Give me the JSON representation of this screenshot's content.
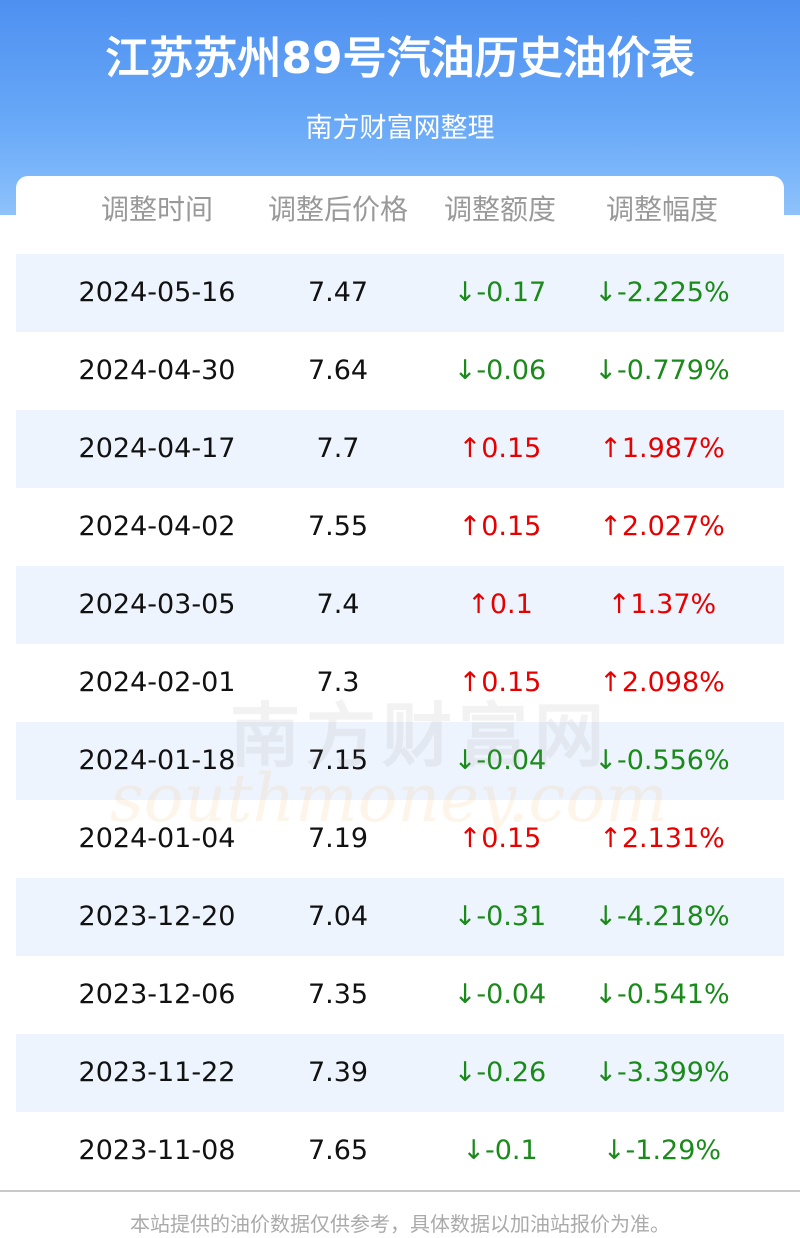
{
  "header": {
    "title": "江苏苏州89号汽油历史油价表",
    "subtitle": "南方财富网整理"
  },
  "table": {
    "columns": [
      "调整时间",
      "调整后价格",
      "调整额度",
      "调整幅度"
    ],
    "rows": [
      {
        "cells": [
          "2024-05-16",
          "7.47",
          "↓-0.17",
          "↓-2.225%"
        ],
        "color": "#1a8a1a"
      },
      {
        "cells": [
          "2024-04-30",
          "7.64",
          "↓-0.06",
          "↓-0.779%"
        ],
        "color": "#1a8a1a"
      },
      {
        "cells": [
          "2024-04-17",
          "7.7",
          "↑0.15",
          "↑1.987%"
        ],
        "color": "#e60000"
      },
      {
        "cells": [
          "2024-04-02",
          "7.55",
          "↑0.15",
          "↑2.027%"
        ],
        "color": "#e60000"
      },
      {
        "cells": [
          "2024-03-05",
          "7.4",
          "↑0.1",
          "↑1.37%"
        ],
        "color": "#e60000"
      },
      {
        "cells": [
          "2024-02-01",
          "7.3",
          "↑0.15",
          "↑2.098%"
        ],
        "color": "#e60000"
      },
      {
        "cells": [
          "2024-01-18",
          "7.15",
          "↓-0.04",
          "↓-0.556%"
        ],
        "color": "#1a8a1a"
      },
      {
        "cells": [
          "2024-01-04",
          "7.19",
          "↑0.15",
          "↑2.131%"
        ],
        "color": "#e60000"
      },
      {
        "cells": [
          "2023-12-20",
          "7.04",
          "↓-0.31",
          "↓-4.218%"
        ],
        "color": "#1a8a1a"
      },
      {
        "cells": [
          "2023-12-06",
          "7.35",
          "↓-0.04",
          "↓-0.541%"
        ],
        "color": "#1a8a1a"
      },
      {
        "cells": [
          "2023-11-22",
          "7.39",
          "↓-0.26",
          "↓-3.399%"
        ],
        "color": "#1a8a1a"
      },
      {
        "cells": [
          "2023-11-08",
          "7.65",
          "↓-0.1",
          "↓-1.29%"
        ],
        "color": "#1a8a1a"
      }
    ]
  },
  "watermark": {
    "name": "南方财富网",
    "url": "southmoney.com"
  },
  "footer": "本站提供的油价数据仅供参考，具体数据以加油站报价为准。"
}
